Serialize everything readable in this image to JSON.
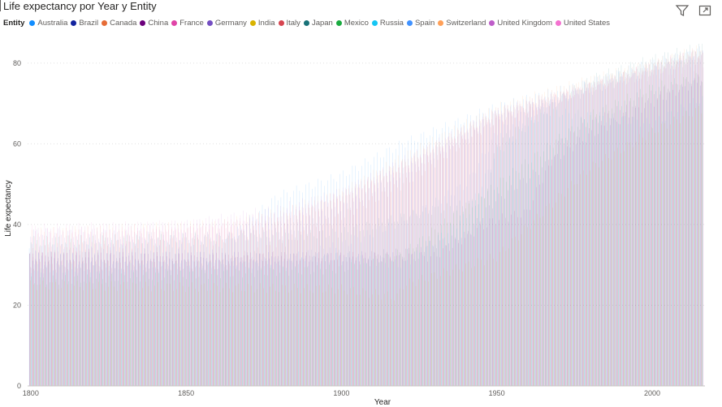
{
  "visual": {
    "title": "Life expectancy por Year y Entity",
    "legend_title": "Entity",
    "icons": [
      "filter-icon",
      "focus-mode-icon"
    ]
  },
  "chart_data": {
    "type": "bar",
    "title": "Life expectancy por Year y Entity",
    "xlabel": "Year",
    "ylabel": "Life expectancy",
    "xlim": [
      1799,
      2017
    ],
    "ylim": [
      0,
      88
    ],
    "x_ticks": [
      1800,
      1850,
      1900,
      1950,
      2000
    ],
    "y_ticks": [
      0,
      20,
      40,
      60,
      80
    ],
    "grid": true,
    "legend_position": "top-left",
    "series": [
      {
        "name": "Australia",
        "color": "#118DFF",
        "points": [
          [
            1800,
            34
          ],
          [
            1860,
            34
          ],
          [
            1880,
            47
          ],
          [
            1900,
            52
          ],
          [
            1920,
            60
          ],
          [
            1950,
            69
          ],
          [
            1980,
            75
          ],
          [
            2000,
            80
          ],
          [
            2015,
            82.5
          ]
        ]
      },
      {
        "name": "Brazil",
        "color": "#12239E",
        "points": [
          [
            1800,
            32
          ],
          [
            1880,
            32
          ],
          [
            1900,
            32
          ],
          [
            1920,
            33
          ],
          [
            1940,
            37
          ],
          [
            1950,
            46
          ],
          [
            1980,
            62
          ],
          [
            2000,
            70
          ],
          [
            2015,
            75.5
          ]
        ]
      },
      {
        "name": "Canada",
        "color": "#E66C37",
        "points": [
          [
            1800,
            34
          ],
          [
            1860,
            36
          ],
          [
            1880,
            40
          ],
          [
            1900,
            47
          ],
          [
            1920,
            55
          ],
          [
            1950,
            68
          ],
          [
            1980,
            75
          ],
          [
            2000,
            79
          ],
          [
            2015,
            82
          ]
        ]
      },
      {
        "name": "China",
        "color": "#6B007B",
        "points": [
          [
            1800,
            32
          ],
          [
            1900,
            32
          ],
          [
            1930,
            32
          ],
          [
            1949,
            41
          ],
          [
            1960,
            43
          ],
          [
            1970,
            60
          ],
          [
            1980,
            65
          ],
          [
            2000,
            72
          ],
          [
            2015,
            76
          ]
        ]
      },
      {
        "name": "France",
        "color": "#E044A7",
        "points": [
          [
            1800,
            33
          ],
          [
            1840,
            37
          ],
          [
            1880,
            41
          ],
          [
            1900,
            46
          ],
          [
            1920,
            53
          ],
          [
            1950,
            66
          ],
          [
            1980,
            74
          ],
          [
            2000,
            79
          ],
          [
            2015,
            82.5
          ]
        ]
      },
      {
        "name": "Germany",
        "color": "#744EC2",
        "points": [
          [
            1800,
            38
          ],
          [
            1860,
            37
          ],
          [
            1880,
            38
          ],
          [
            1900,
            44
          ],
          [
            1920,
            53
          ],
          [
            1950,
            67
          ],
          [
            1980,
            73
          ],
          [
            2000,
            78
          ],
          [
            2015,
            81
          ]
        ]
      },
      {
        "name": "India",
        "color": "#D9B300",
        "points": [
          [
            1800,
            25
          ],
          [
            1900,
            24
          ],
          [
            1918,
            22
          ],
          [
            1920,
            25
          ],
          [
            1950,
            32
          ],
          [
            1980,
            54
          ],
          [
            2000,
            63
          ],
          [
            2015,
            68.5
          ]
        ]
      },
      {
        "name": "Italy",
        "color": "#D64550",
        "points": [
          [
            1800,
            30
          ],
          [
            1860,
            30
          ],
          [
            1880,
            35
          ],
          [
            1900,
            42
          ],
          [
            1920,
            50
          ],
          [
            1950,
            66
          ],
          [
            1980,
            74
          ],
          [
            2000,
            79.5
          ],
          [
            2015,
            83
          ]
        ]
      },
      {
        "name": "Japan",
        "color": "#197278",
        "points": [
          [
            1800,
            36
          ],
          [
            1880,
            37
          ],
          [
            1900,
            38
          ],
          [
            1920,
            42
          ],
          [
            1946,
            46
          ],
          [
            1950,
            60
          ],
          [
            1980,
            76
          ],
          [
            2000,
            81
          ],
          [
            2015,
            84
          ]
        ]
      },
      {
        "name": "Mexico",
        "color": "#1AAB40",
        "points": [
          [
            1800,
            26
          ],
          [
            1900,
            29
          ],
          [
            1920,
            33
          ],
          [
            1950,
            50
          ],
          [
            1980,
            67
          ],
          [
            2000,
            74
          ],
          [
            2015,
            76.5
          ]
        ]
      },
      {
        "name": "Russia",
        "color": "#15C6F4",
        "points": [
          [
            1800,
            29
          ],
          [
            1880,
            30
          ],
          [
            1900,
            32
          ],
          [
            1920,
            30
          ],
          [
            1940,
            42
          ],
          [
            1950,
            58
          ],
          [
            1965,
            68
          ],
          [
            1980,
            67
          ],
          [
            2000,
            65
          ],
          [
            2015,
            71
          ]
        ]
      },
      {
        "name": "Spain",
        "color": "#4092FF",
        "points": [
          [
            1800,
            29
          ],
          [
            1880,
            31
          ],
          [
            1900,
            35
          ],
          [
            1920,
            41
          ],
          [
            1940,
            50
          ],
          [
            1950,
            63
          ],
          [
            1980,
            75
          ],
          [
            2000,
            79
          ],
          [
            2015,
            83
          ]
        ]
      },
      {
        "name": "Switzerland",
        "color": "#FFA058",
        "points": [
          [
            1800,
            38
          ],
          [
            1860,
            40
          ],
          [
            1880,
            43
          ],
          [
            1900,
            48
          ],
          [
            1920,
            57
          ],
          [
            1950,
            69
          ],
          [
            1980,
            76
          ],
          [
            2000,
            80
          ],
          [
            2015,
            83.5
          ]
        ]
      },
      {
        "name": "United Kingdom",
        "color": "#BE5DC9",
        "points": [
          [
            1800,
            38
          ],
          [
            1850,
            40
          ],
          [
            1880,
            44
          ],
          [
            1900,
            48
          ],
          [
            1920,
            56
          ],
          [
            1950,
            68
          ],
          [
            1980,
            74
          ],
          [
            2000,
            78
          ],
          [
            2015,
            81.5
          ]
        ]
      },
      {
        "name": "United States",
        "color": "#F472D0",
        "points": [
          [
            1800,
            39
          ],
          [
            1850,
            40
          ],
          [
            1880,
            42
          ],
          [
            1900,
            48
          ],
          [
            1920,
            55
          ],
          [
            1950,
            68
          ],
          [
            1980,
            74
          ],
          [
            2000,
            77
          ],
          [
            2015,
            79.5
          ]
        ]
      }
    ]
  }
}
